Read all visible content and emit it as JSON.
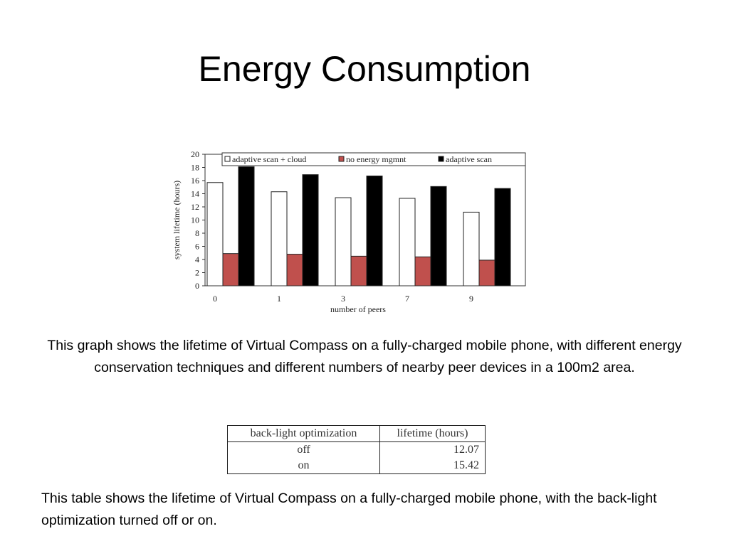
{
  "slide": {
    "title": "Energy Consumption",
    "caption_graph": "This graph shows the lifetime of Virtual Compass on a fully-charged mobile phone, with different energy conservation techniques and different numbers of nearby peer devices in a 100m2 area.",
    "caption_table": "This table shows the lifetime of Virtual Compass on a fully-charged mobile phone, with the back-light optimization turned off or on."
  },
  "chart_data": {
    "type": "bar",
    "title": "",
    "xlabel": "number of peers",
    "ylabel": "system lifetime (hours)",
    "ylim": [
      0,
      20
    ],
    "yticks": [
      0,
      2,
      4,
      6,
      8,
      10,
      12,
      14,
      16,
      18,
      20
    ],
    "categories": [
      "0",
      "1",
      "3",
      "7",
      "9"
    ],
    "legend_position": "top",
    "series": [
      {
        "name": "adaptive scan + cloud",
        "color": "#ffffff",
        "values": [
          15.7,
          14.3,
          13.4,
          13.3,
          11.2
        ]
      },
      {
        "name": "no energy mgmnt",
        "color": "#c0504d",
        "values": [
          4.9,
          4.8,
          4.5,
          4.4,
          3.9
        ]
      },
      {
        "name": "adaptive scan",
        "color": "#000000",
        "values": [
          18.1,
          16.9,
          16.7,
          15.1,
          14.8
        ]
      }
    ]
  },
  "table": {
    "headers": [
      "back-light optimization",
      "lifetime (hours)"
    ],
    "rows": [
      [
        "off",
        "12.07"
      ],
      [
        "on",
        "15.42"
      ]
    ]
  }
}
